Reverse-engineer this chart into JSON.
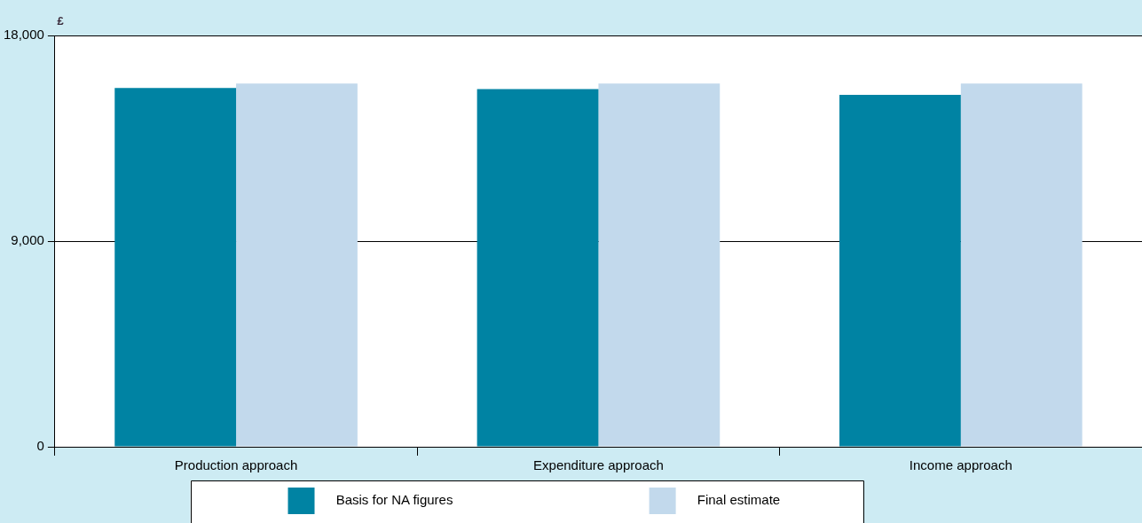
{
  "chart_data": {
    "type": "bar",
    "ylabel": "£",
    "categories": [
      "Production approach",
      "Expenditure approach",
      "Income approach"
    ],
    "series": [
      {
        "name": "Basis for NA figures",
        "color": "#0083a3",
        "values": [
          15700,
          15650,
          15400
        ]
      },
      {
        "name": "Final estimate",
        "color": "#c2d9ec",
        "values": [
          15900,
          15900,
          15900
        ]
      }
    ],
    "ylim": [
      0,
      18000
    ],
    "yticks": [
      0,
      {
        "value": 9000,
        "label": "9,000"
      },
      {
        "value": 18000,
        "label": "18,000"
      }
    ],
    "grid": "y",
    "legend": "bottom"
  }
}
